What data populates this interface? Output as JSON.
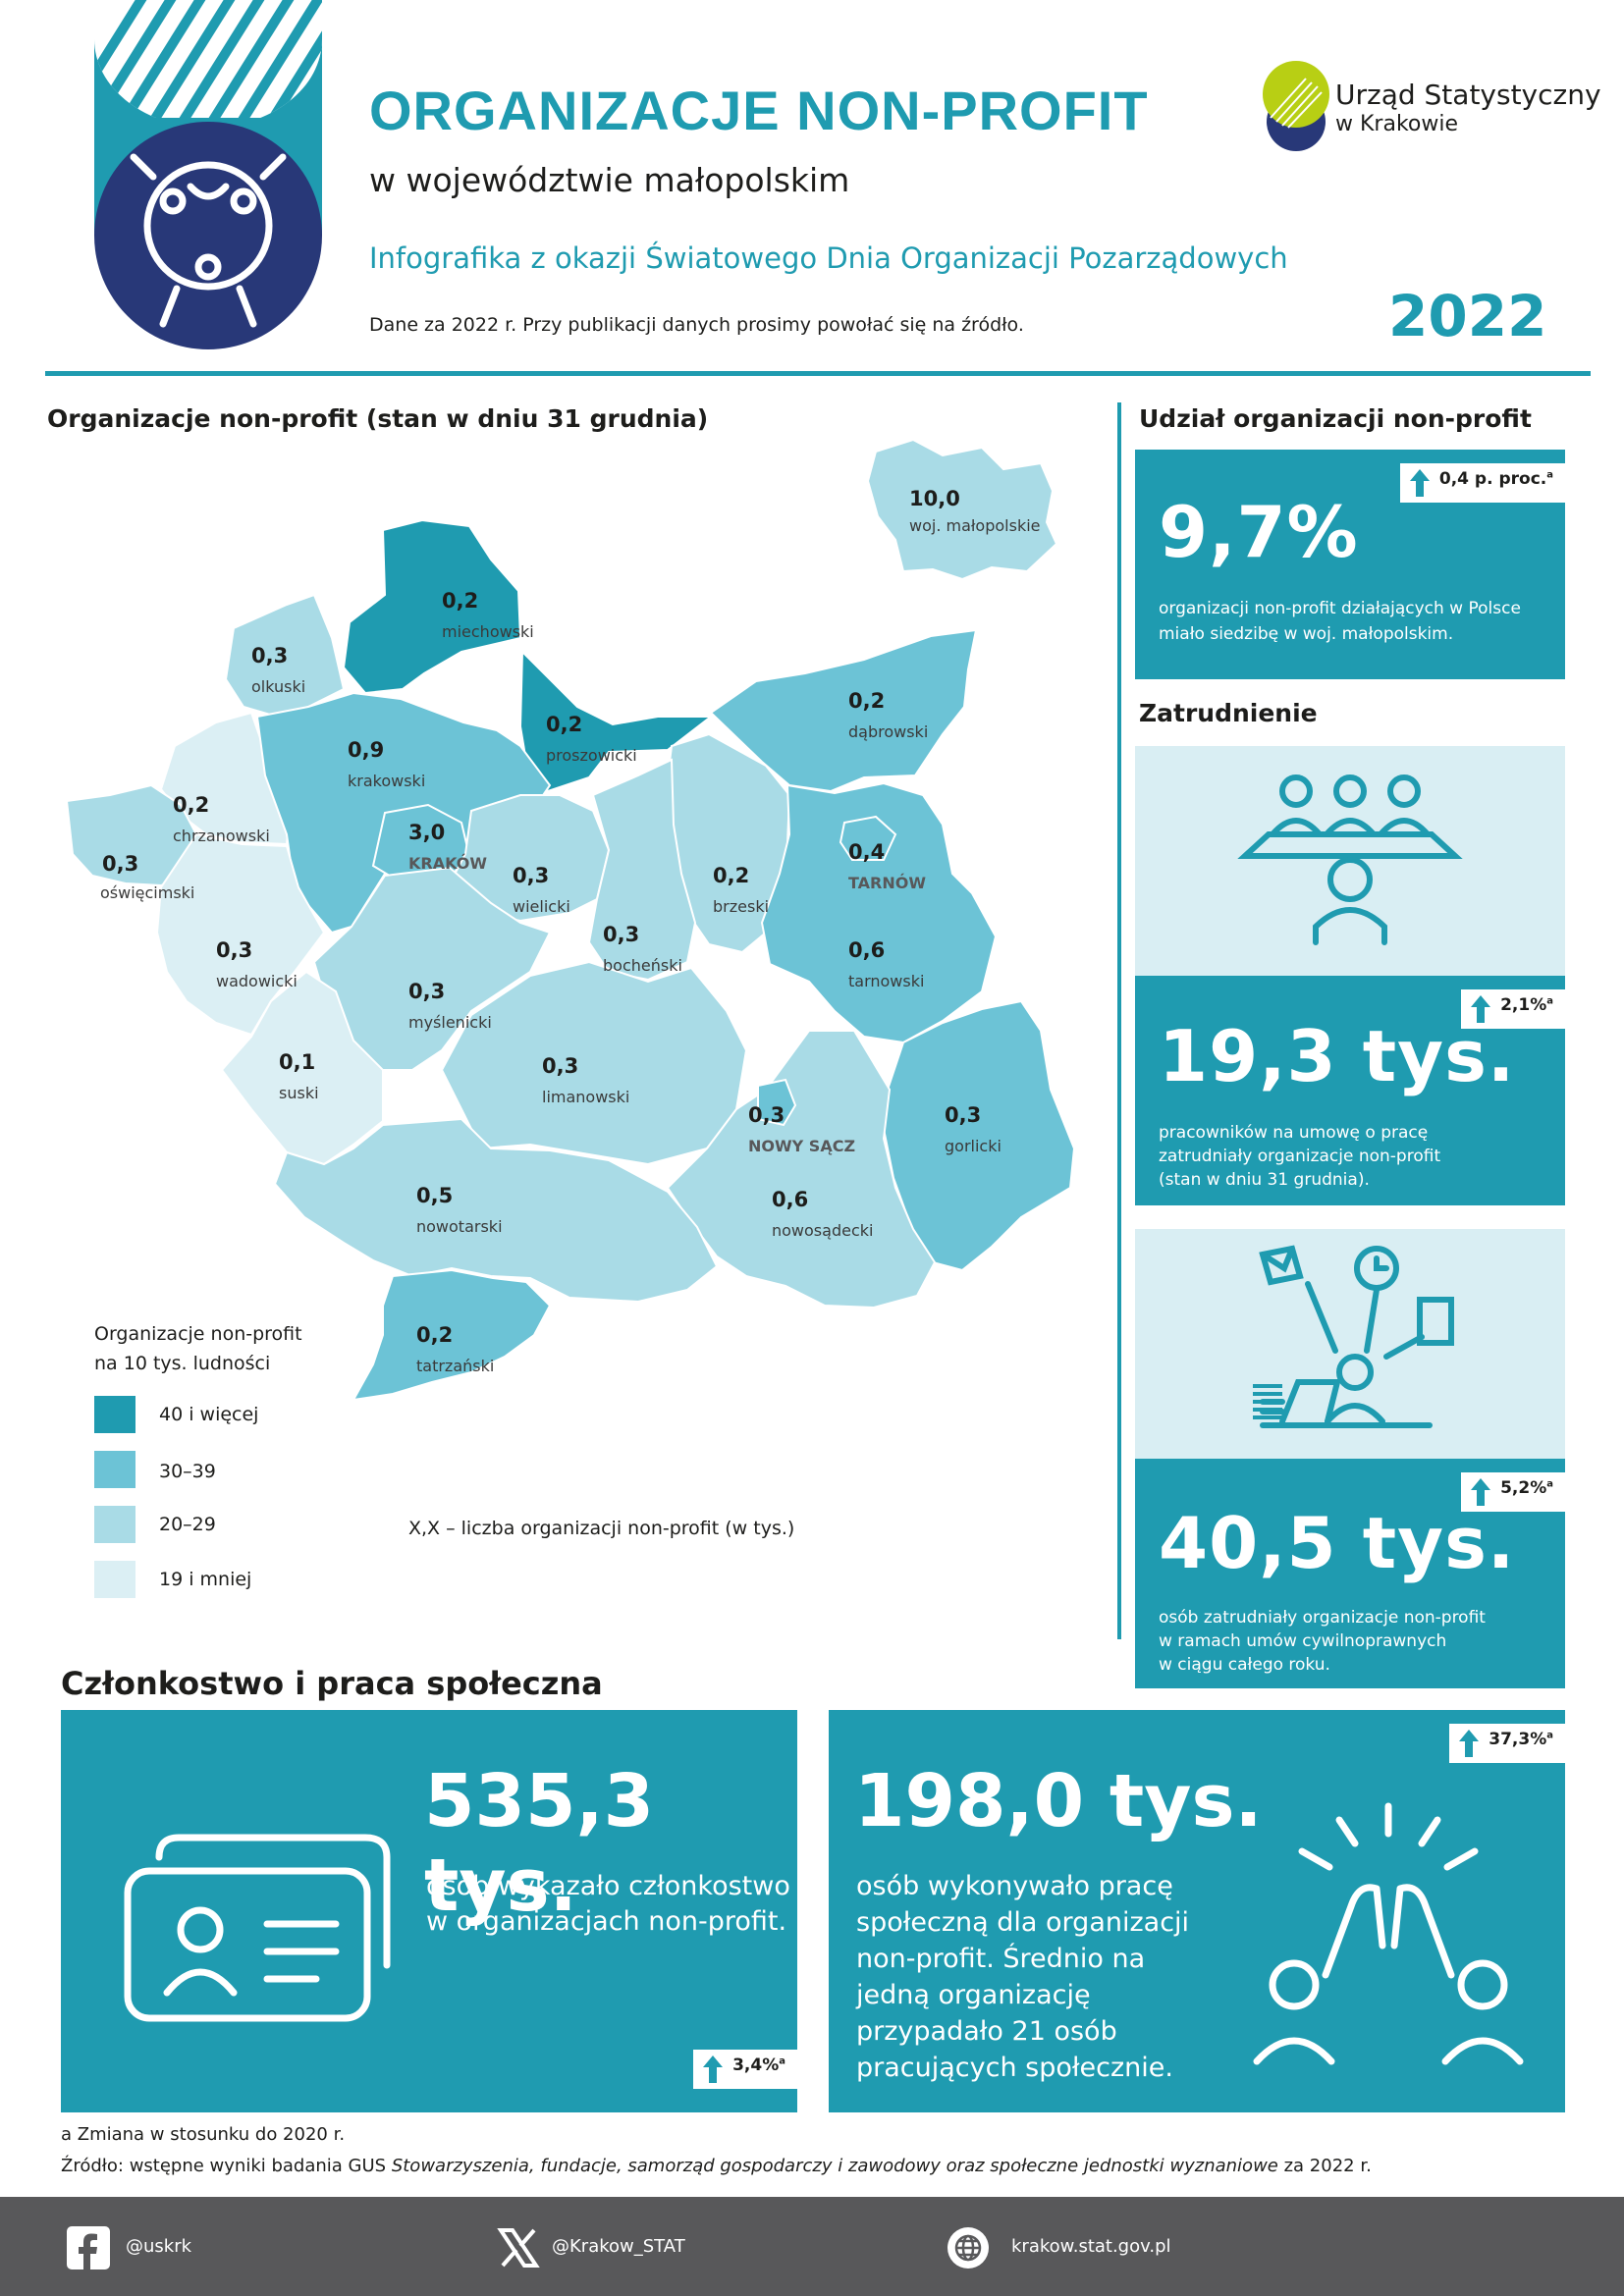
{
  "header": {
    "title": "ORGANIZACJE NON-PROFIT",
    "subtitle": "w województwie małopolskim",
    "info": "Infografika z okazji Światowego Dnia Organizacji Pozarządowych",
    "note": "Dane za 2022 r. Przy publikacji danych prosimy powołać się na źródło.",
    "year": "2022",
    "logo_line1": "Urząd Statystyczny",
    "logo_line2": "w Krakowie"
  },
  "map": {
    "title": "Organizacje non-profit (stan w dniu 31 grudnia)",
    "inset_value": "10,0",
    "inset_label": "woj. małopolskie",
    "legend_title_1": "Organizacje non-profit",
    "legend_title_2": "na 10 tys. ludności",
    "legend": [
      {
        "label": "40 i więcej",
        "color": "#1f9bb0"
      },
      {
        "label": "30–39",
        "color": "#6cc3d6"
      },
      {
        "label": "20–29",
        "color": "#a9dbe6"
      },
      {
        "label": "19 i mniej",
        "color": "#dbeff4"
      }
    ],
    "note": "X,X – liczba organizacji non-profit (w tys.)",
    "regions": [
      {
        "value": "0,2",
        "name": "miechowski"
      },
      {
        "value": "0,3",
        "name": "olkuski"
      },
      {
        "value": "0,2",
        "name": "proszowicki"
      },
      {
        "value": "0,9",
        "name": "krakowski"
      },
      {
        "value": "0,2",
        "name": "dąbrowski"
      },
      {
        "value": "0,2",
        "name": "chrzanowski"
      },
      {
        "value": "3,0",
        "name": "KRAKÓW"
      },
      {
        "value": "0,3",
        "name": "oświęcimski"
      },
      {
        "value": "0,3",
        "name": "wielicki"
      },
      {
        "value": "0,2",
        "name": "brzeski"
      },
      {
        "value": "0,4",
        "name": "TARNÓW"
      },
      {
        "value": "0,3",
        "name": "wadowicki"
      },
      {
        "value": "0,3",
        "name": "bocheński"
      },
      {
        "value": "0,6",
        "name": "tarnowski"
      },
      {
        "value": "0,3",
        "name": "myślenicki"
      },
      {
        "value": "0,1",
        "name": "suski"
      },
      {
        "value": "0,3",
        "name": "limanowski"
      },
      {
        "value": "0,3",
        "name": "NOWY SĄCZ"
      },
      {
        "value": "0,3",
        "name": "gorlicki"
      },
      {
        "value": "0,5",
        "name": "nowotarski"
      },
      {
        "value": "0,6",
        "name": "nowosądecki"
      },
      {
        "value": "0,2",
        "name": "tatrzański"
      }
    ]
  },
  "share": {
    "title": "Udział organizacji non-profit",
    "badge": "0,4 p. proc.",
    "badge_sup": "a",
    "value": "9,7%",
    "desc_1": "organizacji non-profit działających w Polsce",
    "desc_2": "miało siedzibę w woj. małopolskim."
  },
  "employment": {
    "title": "Zatrudnienie",
    "box1": {
      "badge": "2,1%",
      "badge_sup": "a",
      "value": "19,3 tys.",
      "desc_1": "pracowników na umowę o pracę",
      "desc_2": "zatrudniały organizacje non-profit",
      "desc_3": "(stan w dniu 31 grudnia)."
    },
    "box2": {
      "badge": "5,2%",
      "badge_sup": "a",
      "value": "40,5 tys.",
      "desc_1": "osób zatrudniały organizacje non-profit",
      "desc_2": "w ramach umów cywilnoprawnych",
      "desc_3": "w ciągu całego roku."
    }
  },
  "membership": {
    "title": "Członkostwo i praca społeczna",
    "box1": {
      "value": "535,3 tys.",
      "desc_1": "osób wykazało członkostwo",
      "desc_2": "w organizacjach non-profit.",
      "badge": "3,4%",
      "badge_sup": "a"
    },
    "box2": {
      "value": "198,0 tys.",
      "desc_1": "osób wykonywało pracę",
      "desc_2": "społeczną dla organizacji",
      "desc_3": "non-profit. Średnio na",
      "desc_4": "jedną organizację",
      "desc_5": "przypadało 21 osób",
      "desc_6": "pracujących społecznie.",
      "badge": "37,3%",
      "badge_sup": "a"
    }
  },
  "footnotes": {
    "a": "a Zmiana w stosunku do 2020 r.",
    "source_1": "Źródło: wstępne wyniki badania GUS ",
    "source_italic": "Stowarzyszenia, fundacje, samorząd gospodarczy i zawodowy oraz społeczne jednostki wyznaniowe",
    "source_2": " za 2022 r."
  },
  "footer": {
    "facebook": "@uskrk",
    "x": "@Krakow_STAT",
    "web": "krakow.stat.gov.pl"
  }
}
